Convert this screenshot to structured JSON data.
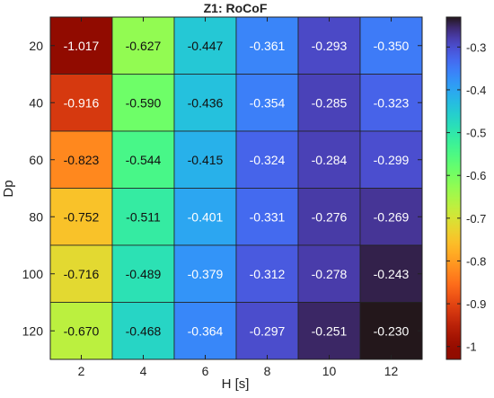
{
  "chart_data": {
    "type": "heatmap",
    "title": "Z1: RoCoF",
    "xlabel": "H [s]",
    "ylabel": "Dp",
    "x_categories": [
      "2",
      "4",
      "6",
      "8",
      "10",
      "12"
    ],
    "y_categories": [
      "20",
      "40",
      "60",
      "80",
      "100",
      "120"
    ],
    "values": [
      [
        -1.017,
        -0.627,
        -0.447,
        -0.361,
        -0.293,
        -0.35
      ],
      [
        -0.916,
        -0.59,
        -0.436,
        -0.354,
        -0.285,
        -0.323
      ],
      [
        -0.823,
        -0.544,
        -0.415,
        -0.324,
        -0.284,
        -0.299
      ],
      [
        -0.752,
        -0.511,
        -0.401,
        -0.331,
        -0.276,
        -0.269
      ],
      [
        -0.716,
        -0.489,
        -0.379,
        -0.312,
        -0.278,
        -0.243
      ],
      [
        -0.67,
        -0.468,
        -0.364,
        -0.297,
        -0.251,
        -0.23
      ]
    ],
    "cell_labels": [
      [
        "-1.017",
        "-0.627",
        "-0.447",
        "-0.361",
        "-0.293",
        "-0.350"
      ],
      [
        "-0.916",
        "-0.590",
        "-0.436",
        "-0.354",
        "-0.285",
        "-0.323"
      ],
      [
        "-0.823",
        "-0.544",
        "-0.415",
        "-0.324",
        "-0.284",
        "-0.299"
      ],
      [
        "-0.752",
        "-0.511",
        "-0.401",
        "-0.331",
        "-0.276",
        "-0.269"
      ],
      [
        "-0.716",
        "-0.489",
        "-0.379",
        "-0.312",
        "-0.278",
        "-0.243"
      ],
      [
        "-0.670",
        "-0.468",
        "-0.364",
        "-0.297",
        "-0.251",
        "-0.230"
      ]
    ],
    "colorbar": {
      "range": [
        -1.03,
        -0.23
      ],
      "ticks": [
        -0.3,
        -0.4,
        -0.5,
        -0.6,
        -0.7,
        -0.8,
        -0.9,
        -1
      ],
      "tick_labels": [
        "-0.3",
        "-0.4",
        "-0.5",
        "-0.6",
        "-0.7",
        "-0.8",
        "-0.9",
        "-1"
      ],
      "colormap": "turbo"
    },
    "grid": true,
    "legend": "none"
  }
}
